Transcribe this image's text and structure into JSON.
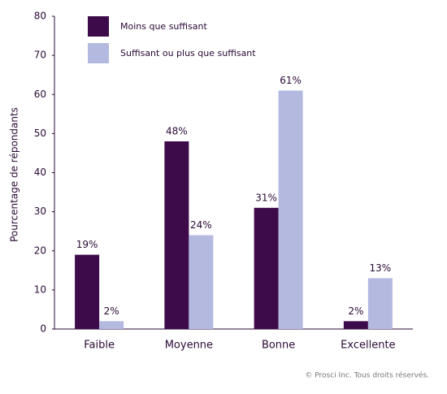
{
  "chart_data": {
    "type": "bar",
    "ylabel": "Pourcentage de répondants",
    "categories": [
      "Faible",
      "Moyenne",
      "Bonne",
      "Excellente"
    ],
    "series": [
      {
        "name": "Moins que suffisant",
        "color": "#3d0a4a",
        "values": [
          19,
          48,
          31,
          2
        ],
        "value_labels": [
          "19%",
          "48%",
          "31%",
          "2%"
        ]
      },
      {
        "name": "Suffisant ou plus que suffisant",
        "color": "#b4b9e0",
        "values": [
          2,
          24,
          61,
          13
        ],
        "value_labels": [
          "2%",
          "24%",
          "61%",
          "13%"
        ]
      }
    ],
    "ylim": [
      0,
      80
    ],
    "yticks": [
      0,
      10,
      20,
      30,
      40,
      50,
      60,
      70,
      80
    ],
    "legend": "top-left",
    "source": "© Prosci Inc. Tous droits réservés."
  }
}
